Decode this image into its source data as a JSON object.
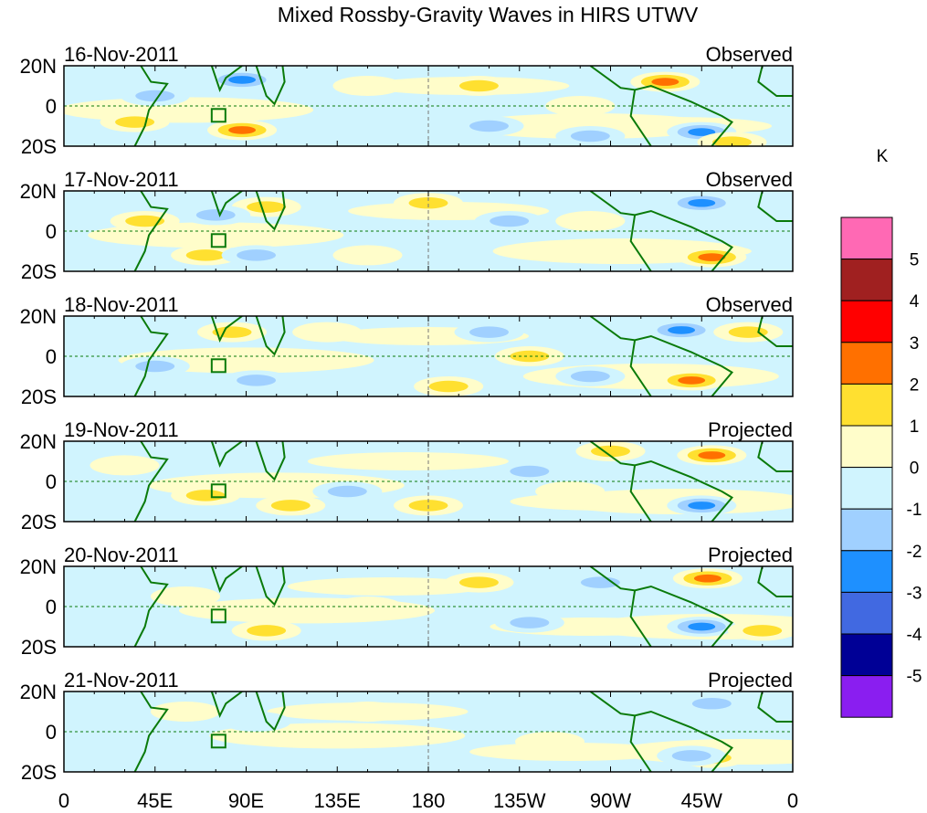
{
  "chart_data": {
    "type": "heatmap",
    "title": "Mixed Rossby-Gravity Waves in HIRS UTWV",
    "units": "K",
    "xlim": [
      0,
      360
    ],
    "ylim": [
      -20,
      20
    ],
    "x_ticks": [
      {
        "lon": 0,
        "label": "0"
      },
      {
        "lon": 45,
        "label": "45E"
      },
      {
        "lon": 90,
        "label": "90E"
      },
      {
        "lon": 135,
        "label": "135E"
      },
      {
        "lon": 180,
        "label": "180"
      },
      {
        "lon": 225,
        "label": "135W"
      },
      {
        "lon": 270,
        "label": "90W"
      },
      {
        "lon": 315,
        "label": "45W"
      },
      {
        "lon": 360,
        "label": "0"
      }
    ],
    "y_ticks": [
      {
        "lat": 20,
        "label": "20N"
      },
      {
        "lat": 0,
        "label": "0"
      },
      {
        "lat": -20,
        "label": "20S"
      }
    ],
    "colorbar": {
      "levels": [
        "5",
        "4",
        "3",
        "2",
        "1",
        "0",
        "-1",
        "-2",
        "-3",
        "-4",
        "-5"
      ],
      "colors": [
        "#ff69b4",
        "#a02020",
        "#ff0000",
        "#ff7000",
        "#ffe030",
        "#fffdca",
        "#d0f4fe",
        "#a0d0ff",
        "#1e90ff",
        "#4169e1",
        "#000096",
        "#8a1ef0"
      ]
    },
    "panels": [
      {
        "date": "16-Nov-2011",
        "type": "Observed",
        "anomalies": [
          [
            88,
            13,
            -3
          ],
          [
            45,
            5,
            -1.5
          ],
          [
            35,
            -8,
            1.5
          ],
          [
            88,
            -12,
            2.5
          ],
          [
            297,
            12,
            2.5
          ],
          [
            205,
            10,
            1.5
          ],
          [
            315,
            -13,
            -3
          ],
          [
            210,
            -10,
            -1.5
          ],
          [
            330,
            -18,
            1.2
          ],
          [
            150,
            10,
            0.5
          ],
          [
            255,
            0,
            0.5
          ],
          [
            260,
            -15,
            -1.5
          ]
        ]
      },
      {
        "date": "17-Nov-2011",
        "type": "Observed",
        "anomalies": [
          [
            100,
            12,
            1.5
          ],
          [
            75,
            8,
            -1.2
          ],
          [
            40,
            5,
            1.2
          ],
          [
            70,
            -12,
            1.2
          ],
          [
            95,
            -12,
            -1.5
          ],
          [
            180,
            14,
            1.2
          ],
          [
            315,
            14,
            -3
          ],
          [
            320,
            -13,
            2.5
          ],
          [
            220,
            5,
            -1.2
          ],
          [
            260,
            5,
            0.5
          ],
          [
            150,
            -12,
            0.5
          ]
        ]
      },
      {
        "date": "18-Nov-2011",
        "type": "Observed",
        "anomalies": [
          [
            83,
            12,
            1.5
          ],
          [
            95,
            -12,
            -1.5
          ],
          [
            45,
            -5,
            -1.2
          ],
          [
            305,
            13,
            -3
          ],
          [
            338,
            12,
            1.2
          ],
          [
            310,
            -12,
            2.5
          ],
          [
            210,
            12,
            -1.2
          ],
          [
            190,
            -15,
            1.2
          ],
          [
            260,
            -10,
            -1.2
          ],
          [
            130,
            12,
            0.5
          ],
          [
            230,
            0,
            1.2
          ]
        ]
      },
      {
        "date": "19-Nov-2011",
        "type": "Projected",
        "anomalies": [
          [
            320,
            13,
            2.5
          ],
          [
            315,
            -12,
            -3
          ],
          [
            70,
            -7,
            1.2
          ],
          [
            112,
            -12,
            1.2
          ],
          [
            180,
            -12,
            1.5
          ],
          [
            270,
            15,
            1.2
          ],
          [
            230,
            5,
            -1.2
          ],
          [
            140,
            -5,
            -1.2
          ],
          [
            30,
            8,
            0.5
          ],
          [
            250,
            -5,
            0.5
          ]
        ]
      },
      {
        "date": "20-Nov-2011",
        "type": "Projected",
        "anomalies": [
          [
            318,
            14,
            2.5
          ],
          [
            315,
            -10,
            -3
          ],
          [
            345,
            -12,
            1.5
          ],
          [
            205,
            12,
            1.2
          ],
          [
            100,
            -12,
            1.2
          ],
          [
            230,
            -8,
            -1.2
          ],
          [
            265,
            12,
            -1.2
          ],
          [
            60,
            5,
            0.5
          ],
          [
            150,
            0,
            0.5
          ]
        ]
      },
      {
        "date": "21-Nov-2011",
        "type": "Projected",
        "anomalies": [
          [
            320,
            -13,
            1.5
          ],
          [
            320,
            14,
            -1.2
          ],
          [
            310,
            -12,
            -1.5
          ],
          [
            150,
            10,
            0.5
          ],
          [
            60,
            10,
            0.5
          ],
          [
            240,
            -5,
            0.5
          ],
          [
            95,
            5,
            -1
          ]
        ]
      }
    ]
  }
}
